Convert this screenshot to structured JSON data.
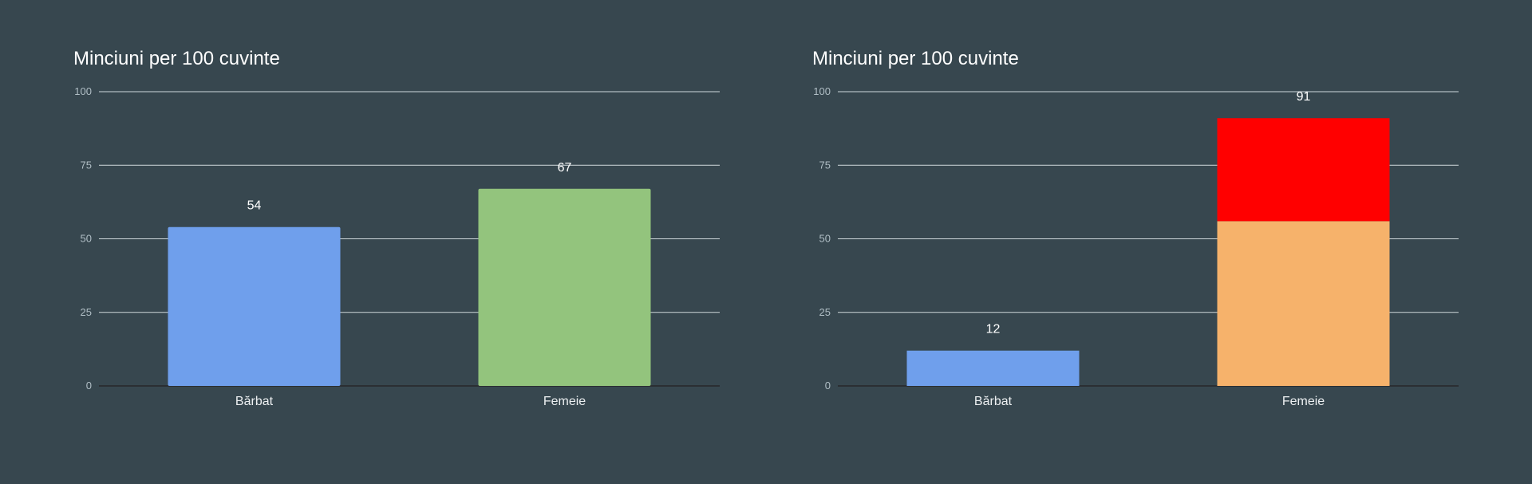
{
  "chart_data": [
    {
      "type": "bar",
      "title": "Minciuni per 100 cuvinte",
      "xlabel": "",
      "ylabel": "",
      "ylim": [
        0,
        100
      ],
      "yticks": [
        "0",
        "25",
        "50",
        "75",
        "100"
      ],
      "grid": true,
      "categories": [
        "Bărbat",
        "Femeie"
      ],
      "values": [
        54,
        67
      ],
      "colors": [
        "#6f9fec",
        "#93c47d"
      ],
      "data_labels": [
        "54",
        "67"
      ]
    },
    {
      "type": "bar",
      "stacked": true,
      "title": "Minciuni per 100 cuvinte",
      "xlabel": "",
      "ylabel": "",
      "ylim": [
        0,
        100
      ],
      "yticks": [
        "0",
        "25",
        "50",
        "75",
        "100"
      ],
      "grid": true,
      "categories": [
        "Bărbat",
        "Femeie"
      ],
      "series": [
        {
          "values": [
            12,
            56
          ],
          "colors": [
            "#6f9fec",
            "#f6b26b"
          ]
        },
        {
          "values": [
            0,
            35
          ],
          "colors": [
            "#ff0000",
            "#ff0000"
          ]
        }
      ],
      "totals": [
        12,
        91
      ],
      "data_labels": [
        "12",
        "91"
      ]
    }
  ]
}
